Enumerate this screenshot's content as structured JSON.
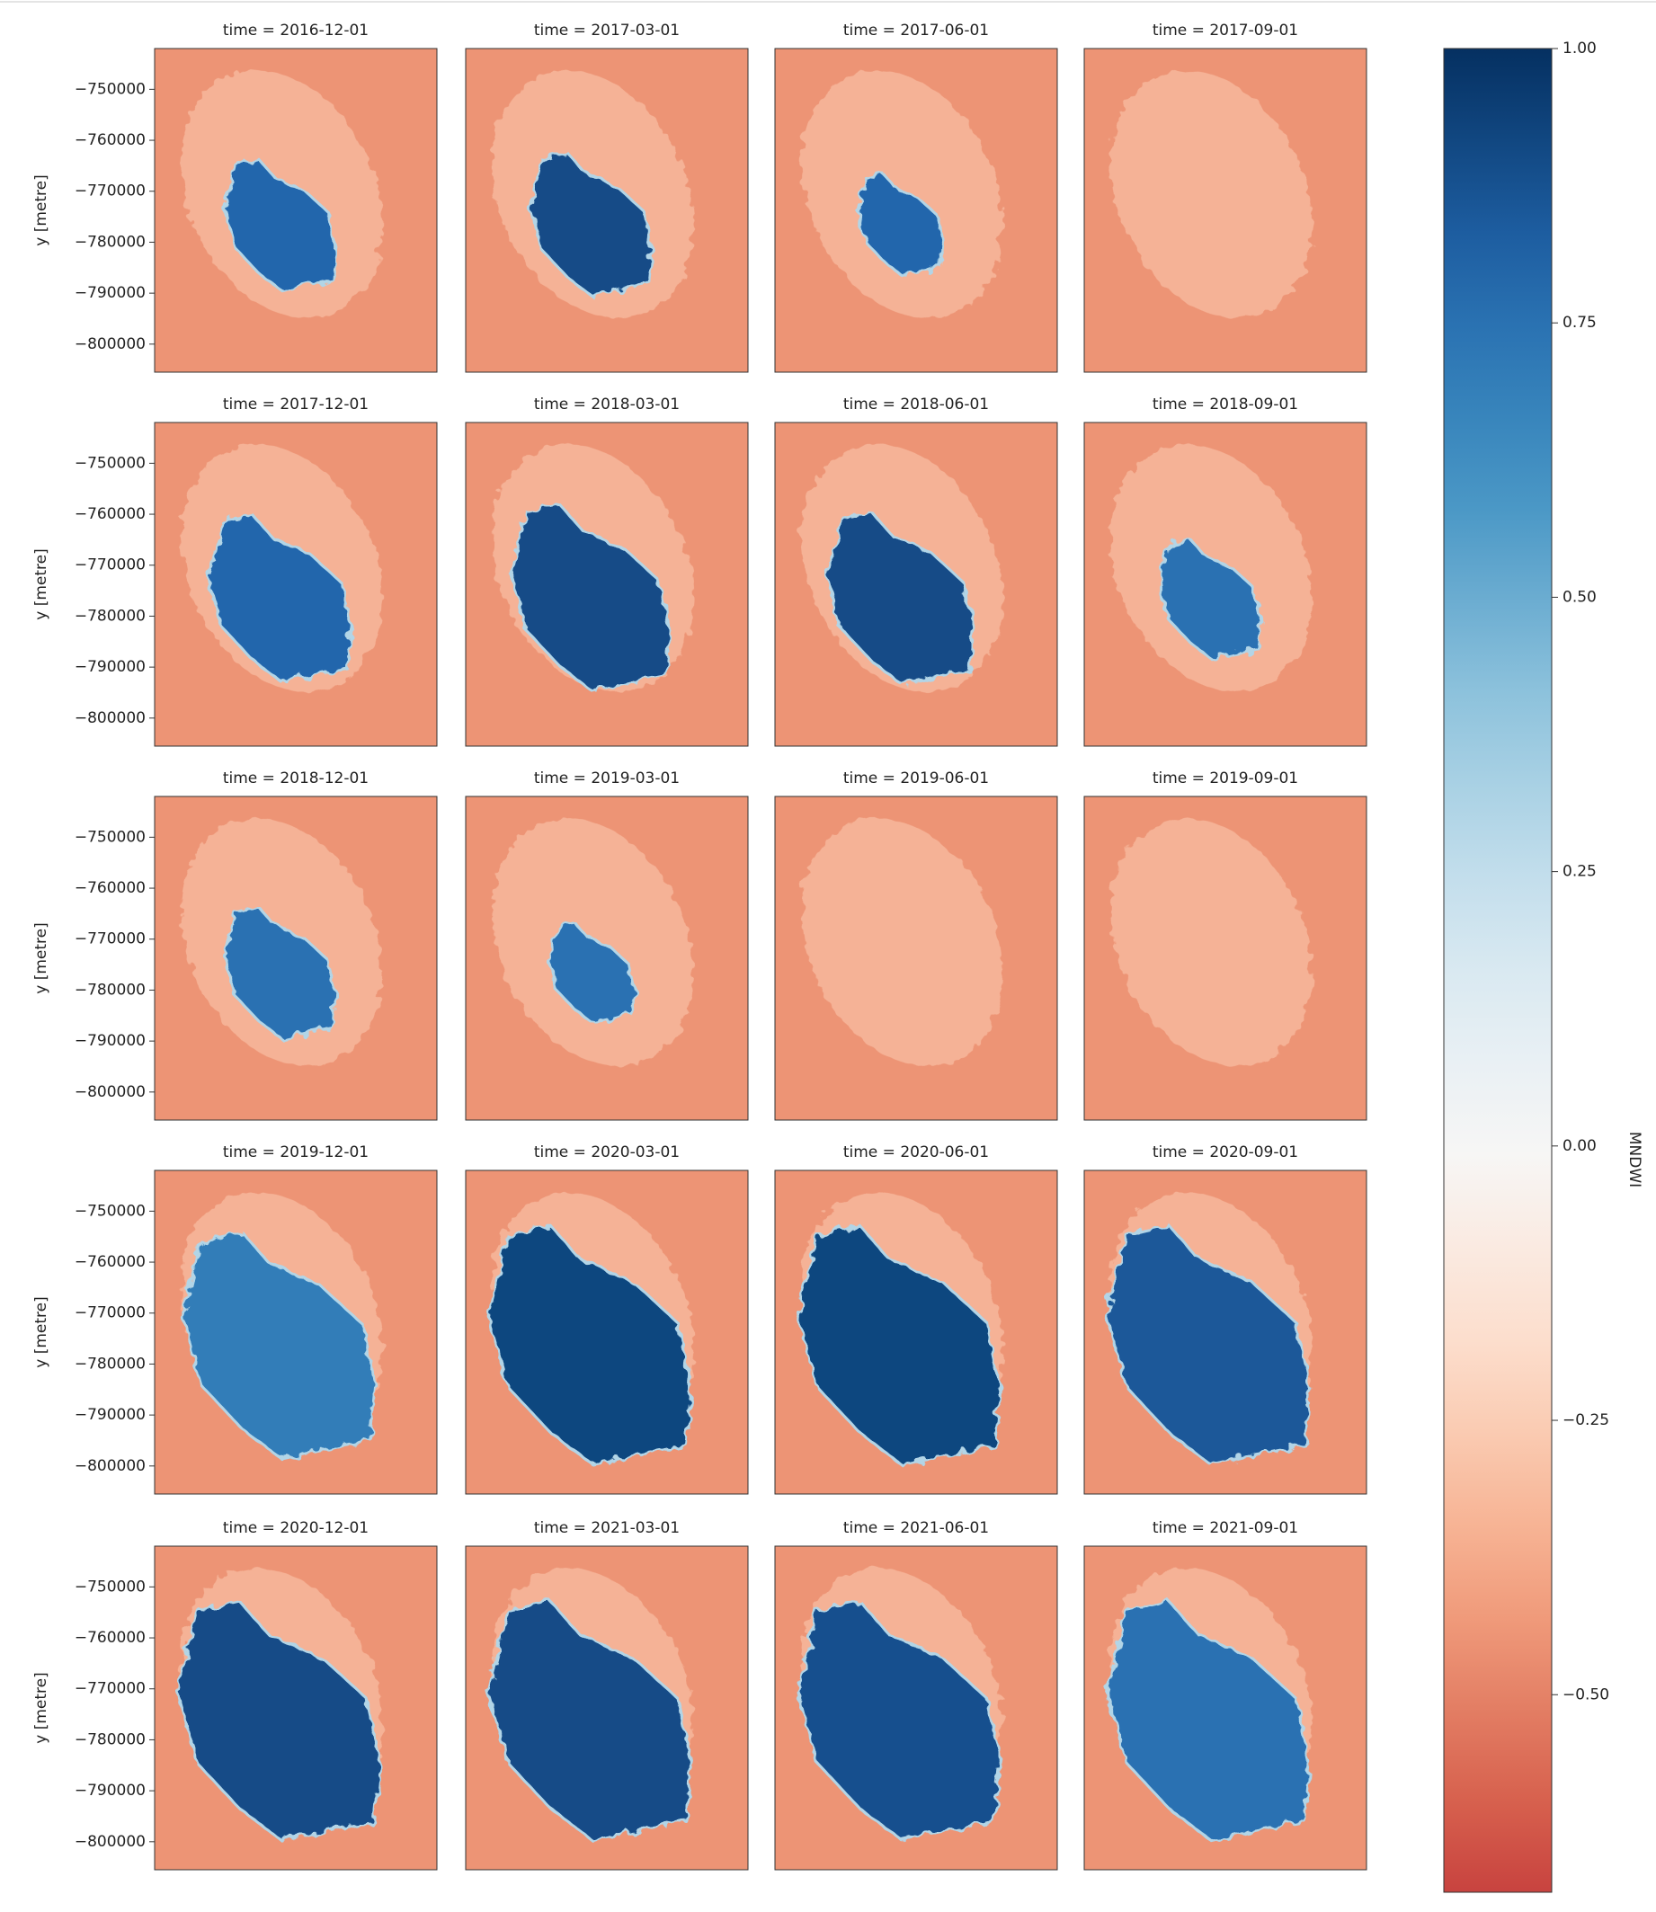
{
  "chart_data": {
    "type": "image-grid",
    "panels": [
      {
        "title": "time = 2016-12-01"
      },
      {
        "title": "time = 2017-03-01"
      },
      {
        "title": "time = 2017-06-01"
      },
      {
        "title": "time = 2017-09-01"
      },
      {
        "title": "time = 2017-12-01"
      },
      {
        "title": "time = 2018-03-01"
      },
      {
        "title": "time = 2018-06-01"
      },
      {
        "title": "time = 2018-09-01"
      },
      {
        "title": "time = 2018-12-01"
      },
      {
        "title": "time = 2019-03-01"
      },
      {
        "title": "time = 2019-06-01"
      },
      {
        "title": "time = 2019-09-01"
      },
      {
        "title": "time = 2019-12-01"
      },
      {
        "title": "time = 2020-03-01"
      },
      {
        "title": "time = 2020-06-01"
      },
      {
        "title": "time = 2020-09-01"
      },
      {
        "title": "time = 2020-12-01"
      },
      {
        "title": "time = 2021-03-01"
      },
      {
        "title": "time = 2021-06-01"
      },
      {
        "title": "time = 2021-09-01"
      }
    ],
    "ylabel": "y [metre]",
    "ylim": [
      -805500,
      -742000
    ],
    "yticks": [
      {
        "value": -750000,
        "label": "−750000"
      },
      {
        "value": -760000,
        "label": "−760000"
      },
      {
        "value": -770000,
        "label": "−770000"
      },
      {
        "value": -780000,
        "label": "−780000"
      },
      {
        "value": -790000,
        "label": "−790000"
      },
      {
        "value": -800000,
        "label": "−800000"
      }
    ],
    "colorbar": {
      "label": "MNDWI",
      "colormap": "RdBu",
      "lim": [
        -0.68,
        1.0
      ],
      "ticks": [
        {
          "value": 1.0,
          "label": "1.00"
        },
        {
          "value": 0.75,
          "label": "0.75"
        },
        {
          "value": 0.5,
          "label": "0.50"
        },
        {
          "value": 0.25,
          "label": "0.25"
        },
        {
          "value": 0.0,
          "label": "0.00"
        },
        {
          "value": -0.25,
          "label": "−0.25"
        },
        {
          "value": -0.5,
          "label": "−0.50"
        }
      ]
    }
  }
}
